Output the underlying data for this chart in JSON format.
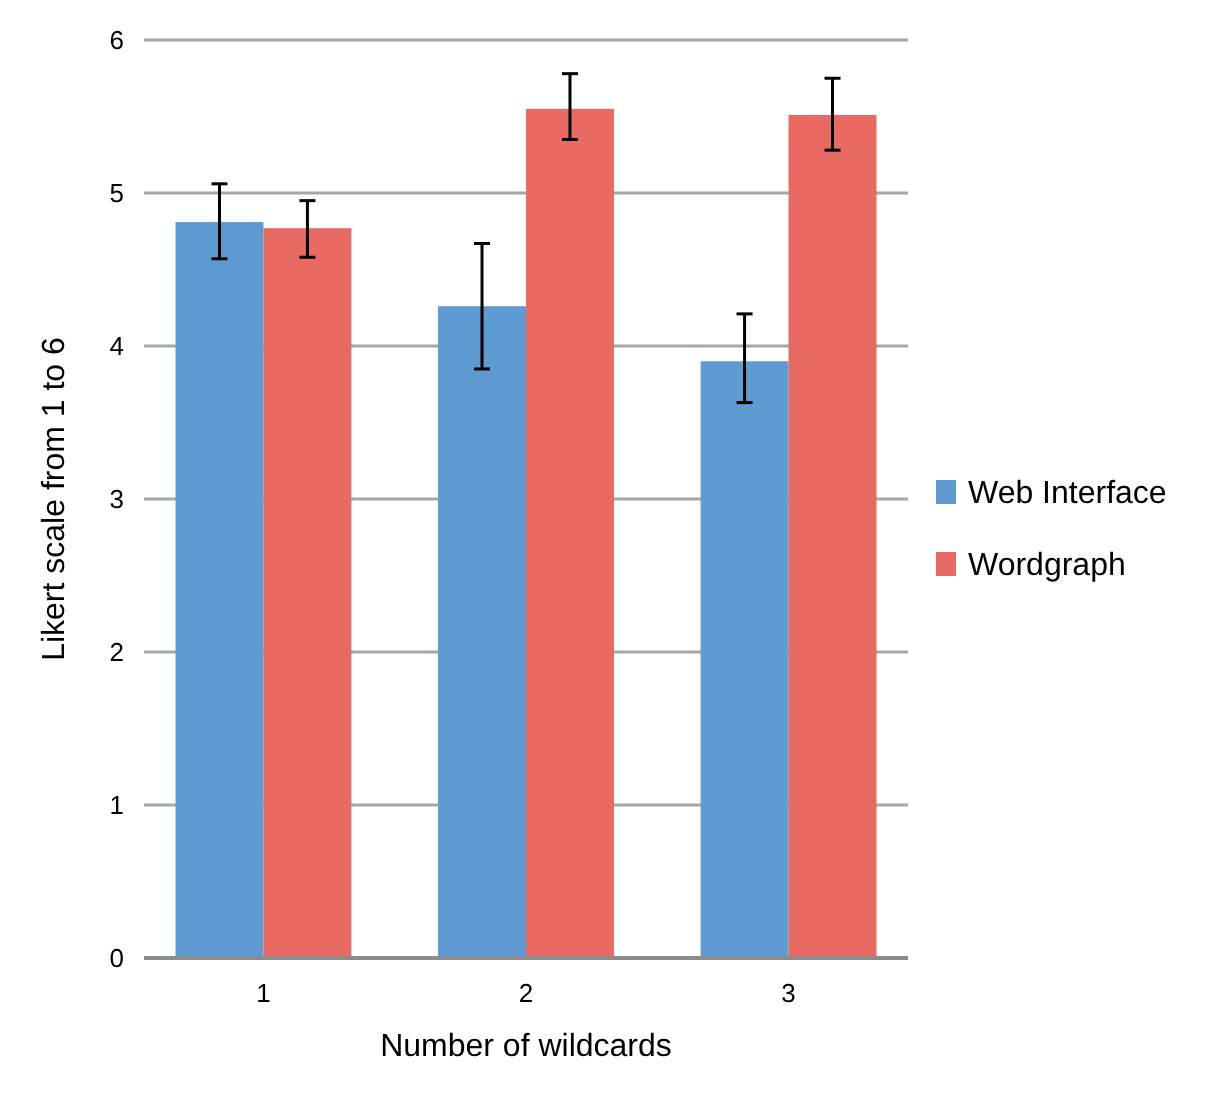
{
  "chart_data": {
    "type": "bar",
    "xlabel": "Number of wildcards",
    "ylabel": "Likert scale from 1 to 6",
    "categories": [
      "1",
      "2",
      "3"
    ],
    "series": [
      {
        "name": "Web Interface",
        "color": "#5f9bd3",
        "values": [
          4.81,
          4.26,
          3.9
        ],
        "errors": [
          [
            4.57,
            5.06
          ],
          [
            3.85,
            4.67
          ],
          [
            3.63,
            4.21
          ]
        ]
      },
      {
        "name": "Wordgraph",
        "color": "#e86a63",
        "values": [
          4.77,
          5.55,
          5.51
        ],
        "errors": [
          [
            4.58,
            4.95
          ],
          [
            5.35,
            5.78
          ],
          [
            5.28,
            5.75
          ]
        ]
      }
    ],
    "ylim": [
      0,
      6
    ],
    "yticks": [
      0,
      1,
      2,
      3,
      4,
      5,
      6
    ],
    "grid": "y",
    "legend": "right"
  }
}
